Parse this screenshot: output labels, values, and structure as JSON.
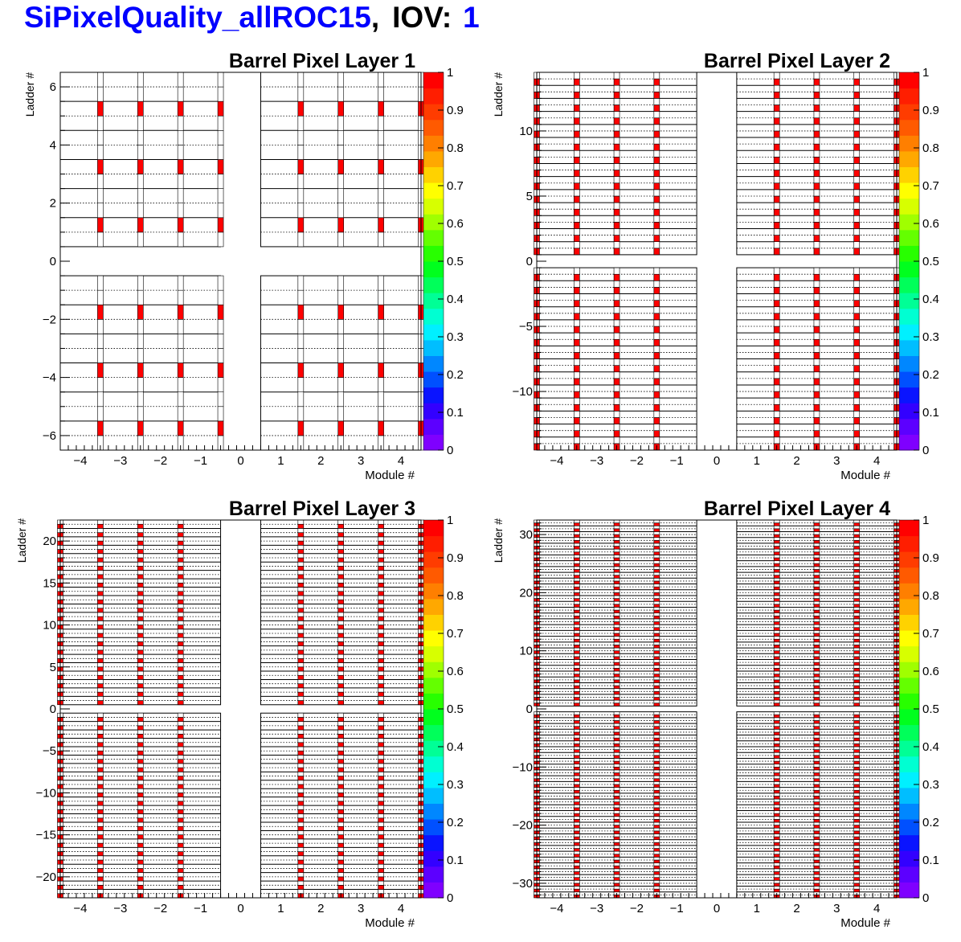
{
  "header": {
    "tag": "SiPixelQuality_allROC15",
    "sep": ",",
    "iov_label": "IOV:",
    "iov_value": "1"
  },
  "colors": {
    "accent": "#0000ff",
    "bad": "#ff0000",
    "palette": [
      "#7f00ff",
      "#5c00ff",
      "#3300ff",
      "#0a14ff",
      "#0050ff",
      "#0087ff",
      "#00beff",
      "#00f0ff",
      "#00ffd2",
      "#00ff96",
      "#00ff5a",
      "#00ff1e",
      "#28ff00",
      "#64ff00",
      "#a0ff00",
      "#d7ff00",
      "#ffff00",
      "#ffd200",
      "#ffa800",
      "#ff7f00",
      "#ff5a00",
      "#ff3c00",
      "#ff1e00",
      "#ff0000"
    ]
  },
  "chart_data": [
    {
      "type": "heatmap",
      "title": "Barrel Pixel Layer 1",
      "xlabel": "Module #",
      "ylabel": "Ladder #",
      "xlim": [
        -4.5,
        4.5
      ],
      "ylim": [
        -6.5,
        6.5
      ],
      "ladders": 6,
      "xticks": [
        -4,
        -3,
        -2,
        -1,
        0,
        1,
        2,
        3,
        4
      ],
      "yticks": [
        -6,
        -4,
        -2,
        0,
        2,
        4,
        6
      ],
      "zlim": [
        0,
        1
      ],
      "zticks": [
        "0",
        "0.1",
        "0.2",
        "0.3",
        "0.4",
        "0.5",
        "0.6",
        "0.7",
        "0.8",
        "0.9",
        "1"
      ],
      "bad_columns": [
        -3.5,
        -2.5,
        -1.5,
        -0.5,
        1.5,
        2.5,
        3.5,
        4.5
      ],
      "outline_columns": [],
      "note_values": "Red cells (value 1) at half-ladder positions along module boundaries"
    },
    {
      "type": "heatmap",
      "title": "Barrel Pixel Layer 2",
      "xlabel": "Module #",
      "ylabel": "Ladder #",
      "xlim": [
        -4.5,
        4.5
      ],
      "ylim": [
        -14.5,
        14.5
      ],
      "ladders": 14,
      "xticks": [
        -4,
        -3,
        -2,
        -1,
        0,
        1,
        2,
        3,
        4
      ],
      "yticks": [
        -10,
        -5,
        0,
        5,
        10
      ],
      "zlim": [
        0,
        1
      ],
      "zticks": [
        "0",
        "0.1",
        "0.2",
        "0.3",
        "0.4",
        "0.5",
        "0.6",
        "0.7",
        "0.8",
        "0.9",
        "1"
      ],
      "bad_columns": [
        -4.5,
        -3.5,
        -2.5,
        -1.5,
        1.5,
        2.5,
        3.5,
        4.5
      ],
      "outline_columns": [],
      "note_values": ""
    },
    {
      "type": "heatmap",
      "title": "Barrel Pixel Layer 3",
      "xlabel": "Module #",
      "ylabel": "Ladder #",
      "xlim": [
        -4.5,
        4.5
      ],
      "ylim": [
        -22.5,
        22.5
      ],
      "ladders": 22,
      "xticks": [
        -4,
        -3,
        -2,
        -1,
        0,
        1,
        2,
        3,
        4
      ],
      "yticks": [
        -20,
        -15,
        -10,
        -5,
        0,
        5,
        10,
        15,
        20
      ],
      "zlim": [
        0,
        1
      ],
      "zticks": [
        "0",
        "0.1",
        "0.2",
        "0.3",
        "0.4",
        "0.5",
        "0.6",
        "0.7",
        "0.8",
        "0.9",
        "1"
      ],
      "bad_columns": [
        -4.5,
        -3.5,
        -2.5,
        -1.5,
        1.5,
        2.5,
        3.5,
        4.5
      ],
      "outline_columns": [],
      "note_values": ""
    },
    {
      "type": "heatmap",
      "title": "Barrel Pixel Layer 4",
      "xlabel": "Module #",
      "ylabel": "Ladder #",
      "xlim": [
        -4.5,
        4.5
      ],
      "ylim": [
        -32.5,
        32.5
      ],
      "ladders": 32,
      "xticks": [
        -4,
        -3,
        -2,
        -1,
        0,
        1,
        2,
        3,
        4
      ],
      "yticks": [
        -30,
        -20,
        -10,
        0,
        10,
        20,
        30
      ],
      "zlim": [
        0,
        1
      ],
      "zticks": [
        "0",
        "0.1",
        "0.2",
        "0.3",
        "0.4",
        "0.5",
        "0.6",
        "0.7",
        "0.8",
        "0.9",
        "1"
      ],
      "bad_columns": [
        -4.5,
        -3.5,
        -2.5,
        -1.5,
        1.5,
        2.5,
        3.5,
        4.5
      ],
      "outline_columns": [],
      "note_values": ""
    }
  ]
}
